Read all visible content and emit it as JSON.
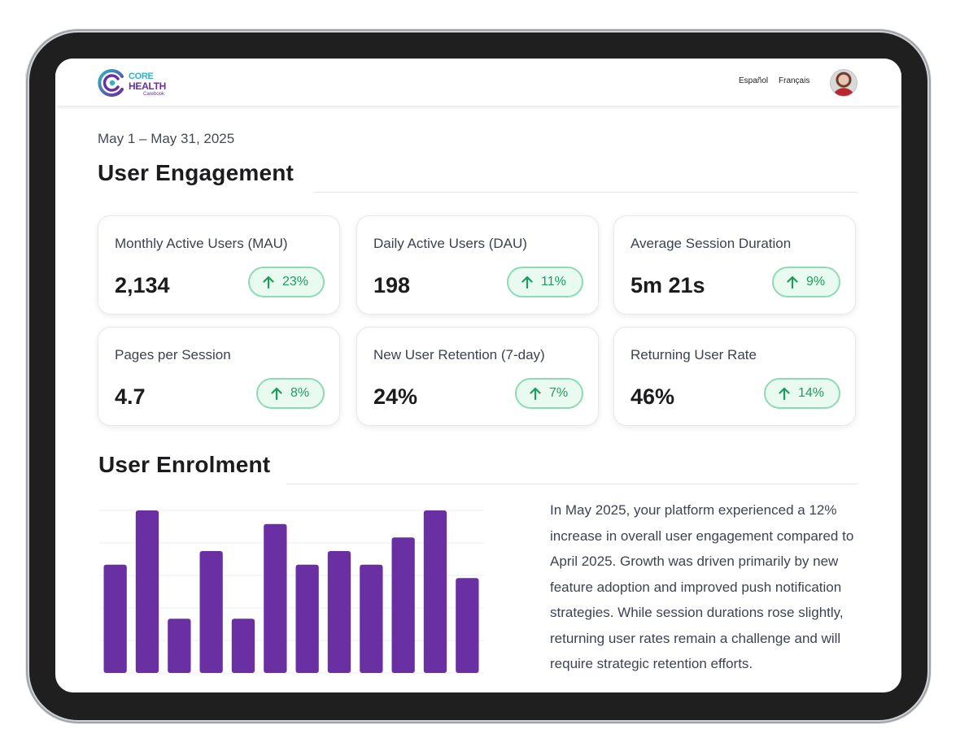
{
  "brand": {
    "line1": "CORE",
    "line2": "HEALTH",
    "line3": "Carebook",
    "colors": {
      "teal": "#2fb3c2",
      "purple": "#6a2fa3"
    }
  },
  "header": {
    "languages": [
      "Español",
      "Français"
    ],
    "avatar_icon": "user-avatar"
  },
  "date_range": "May 1 – May 31, 2025",
  "engagement": {
    "title": "User Engagement",
    "metrics": [
      {
        "label": "Monthly Active Users (MAU)",
        "value": "2,134",
        "change": "23%",
        "trend": "up"
      },
      {
        "label": "Daily Active Users (DAU)",
        "value": "198",
        "change": "11%",
        "trend": "up"
      },
      {
        "label": "Average Session Duration",
        "value": "5m 21s",
        "change": "9%",
        "trend": "up"
      },
      {
        "label": "Pages per Session",
        "value": "4.7",
        "change": "8%",
        "trend": "up"
      },
      {
        "label": "New User Retention (7-day)",
        "value": "24%",
        "change": "7%",
        "trend": "up"
      },
      {
        "label": "Returning User Rate",
        "value": "46%",
        "change": "14%",
        "trend": "up"
      }
    ],
    "colors": {
      "positive_text": "#1f9b5e",
      "positive_border": "#8edbb3",
      "positive_fill": "#e9faf1"
    }
  },
  "enrolment": {
    "title": "User Enrolment",
    "summary": "In May 2025, your platform experienced a 12% increase in overall user engagement compared to April 2025. Growth was driven primarily by new feature adoption and improved push notification strategies. While session durations rose slightly, returning user rates remain a challenge and will require strategic retention efforts."
  },
  "chart_data": {
    "type": "bar",
    "values": [
      6,
      10,
      2,
      7,
      2,
      9,
      6,
      7,
      6,
      8,
      10,
      5
    ],
    "ylim": [
      -2,
      10
    ],
    "grid": true,
    "bar_color": "#6a2fa3"
  }
}
